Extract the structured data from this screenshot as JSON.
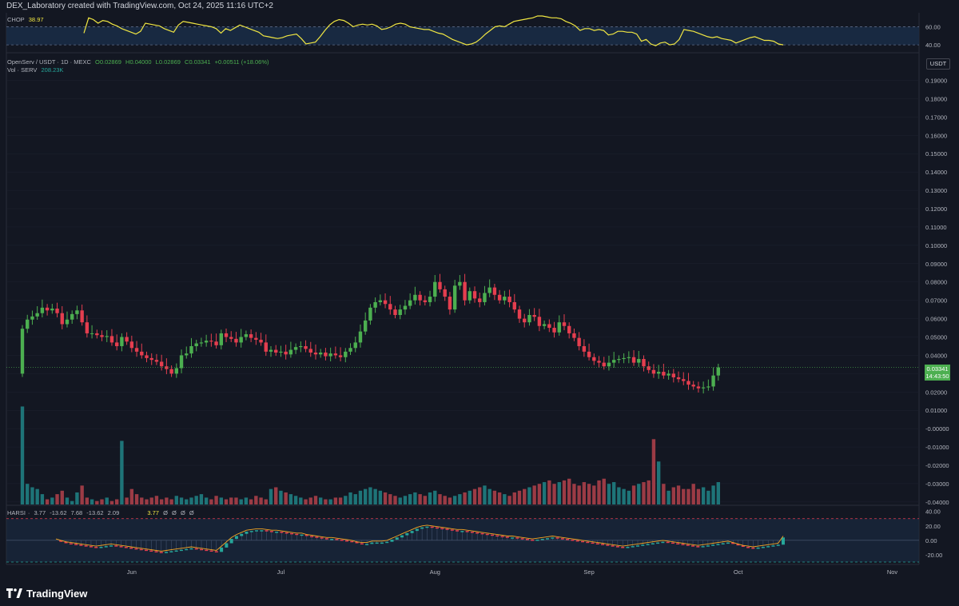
{
  "header": {
    "attribution": "DEX_Laboratory created with TradingView.com, Oct 24, 2025 11:16 UTC+2"
  },
  "footer": {
    "logo_text": "TradingView"
  },
  "colors": {
    "background": "#131722",
    "up": "#4caf50",
    "down": "#e53e4f",
    "vol_up": "#1e7478",
    "vol_down": "#9b3b45",
    "chop_line": "#f0e642",
    "axis_text": "#b2b5be",
    "grid": "#1e2230"
  },
  "chop": {
    "label": "CHOP",
    "value": "38.97",
    "y_range": [
      33,
      72
    ],
    "ticks": [
      "60.00",
      "40.00"
    ],
    "tick_values": [
      60,
      40
    ],
    "values": [
      53,
      70,
      68,
      64,
      67,
      66,
      63,
      61,
      58,
      56,
      54,
      52,
      55,
      64,
      63,
      62,
      61,
      58,
      56,
      54,
      62,
      66,
      65,
      64,
      63,
      62,
      61,
      60,
      58,
      53,
      58,
      56,
      59,
      62,
      60,
      58,
      56,
      54,
      50,
      49,
      48,
      47,
      48,
      50,
      51,
      52,
      47,
      41,
      42,
      43,
      49,
      56,
      62,
      66,
      68,
      67,
      64,
      60,
      62,
      63,
      62,
      63,
      61,
      57,
      58,
      60,
      63,
      64,
      63,
      60,
      59,
      58,
      57,
      57,
      55,
      53,
      52,
      49,
      46,
      44,
      42,
      40,
      41,
      43,
      47,
      52,
      56,
      60,
      61,
      60,
      63,
      66,
      67,
      68,
      69,
      70,
      72,
      72,
      71,
      70,
      70,
      69,
      66,
      64,
      61,
      56,
      58,
      58,
      56,
      57,
      56,
      51,
      52,
      55,
      55,
      54,
      54,
      52,
      44,
      46,
      41,
      39,
      42,
      43,
      40,
      41,
      46,
      57,
      56,
      55,
      53,
      51,
      49,
      48,
      49,
      47,
      46,
      45,
      42,
      44,
      46,
      48,
      49,
      47,
      45,
      45,
      44,
      41,
      40
    ]
  },
  "main": {
    "legend": {
      "symbol": "OpenServ / USDT · 1D · MEXC",
      "open": "O0.02869",
      "high": "H0.04000",
      "low": "L0.02869",
      "close": "C0.03341",
      "change": "+0.00511 (+18.06%)",
      "vol_label": "Vol · SERV",
      "vol_value": "208.23K"
    },
    "currency": "USDT",
    "last_price": "0.03341",
    "countdown": "14:43:50",
    "price_axis": [
      "0.19000",
      "0.18000",
      "0.17000",
      "0.16000",
      "0.15000",
      "0.14000",
      "0.13000",
      "0.12000",
      "0.11000",
      "0.10000",
      "0.09000",
      "0.08000",
      "0.07000",
      "0.06000",
      "0.05000",
      "0.04000",
      "0.03000",
      "0.02000",
      "0.01000",
      "-0.00000",
      "-0.01000",
      "-0.02000",
      "-0.03000",
      "-0.04000"
    ],
    "price_axis_values": [
      0.19,
      0.18,
      0.17,
      0.16,
      0.15,
      0.14,
      0.13,
      0.12,
      0.11,
      0.1,
      0.09,
      0.08,
      0.07,
      0.06,
      0.05,
      0.04,
      0.03,
      0.02,
      0.01,
      0,
      -0.01,
      -0.02,
      -0.03,
      -0.04
    ],
    "date_axis": [
      {
        "label": "Jun",
        "index": 22
      },
      {
        "label": "Jul",
        "index": 52
      },
      {
        "label": "Aug",
        "index": 83
      },
      {
        "label": "Sep",
        "index": 114
      },
      {
        "label": "Oct",
        "index": 144
      },
      {
        "label": "Nov",
        "index": 175
      }
    ],
    "closes": [
      0.0545,
      0.0595,
      0.0612,
      0.063,
      0.066,
      0.0645,
      0.0655,
      0.063,
      0.057,
      0.0595,
      0.0625,
      0.0645,
      0.058,
      0.052,
      0.052,
      0.051,
      0.05,
      0.0505,
      0.047,
      0.045,
      0.05,
      0.0475,
      0.044,
      0.042,
      0.04,
      0.0385,
      0.0375,
      0.0365,
      0.034,
      0.0325,
      0.03,
      0.033,
      0.04,
      0.041,
      0.045,
      0.0465,
      0.047,
      0.048,
      0.0475,
      0.0455,
      0.052,
      0.05,
      0.049,
      0.047,
      0.05,
      0.0515,
      0.0495,
      0.0485,
      0.047,
      0.042,
      0.043,
      0.0415,
      0.042,
      0.0405,
      0.043,
      0.0445,
      0.045,
      0.0435,
      0.0415,
      0.0405,
      0.0415,
      0.0395,
      0.041,
      0.04,
      0.039,
      0.042,
      0.044,
      0.047,
      0.053,
      0.059,
      0.066,
      0.069,
      0.07,
      0.068,
      0.065,
      0.062,
      0.065,
      0.067,
      0.07,
      0.073,
      0.07,
      0.069,
      0.072,
      0.08,
      0.076,
      0.072,
      0.065,
      0.078,
      0.08,
      0.07,
      0.075,
      0.071,
      0.069,
      0.074,
      0.077,
      0.073,
      0.07,
      0.072,
      0.069,
      0.065,
      0.06,
      0.058,
      0.062,
      0.061,
      0.056,
      0.057,
      0.055,
      0.0525,
      0.058,
      0.056,
      0.052,
      0.0495,
      0.045,
      0.042,
      0.039,
      0.037,
      0.036,
      0.034,
      0.036,
      0.0375,
      0.038,
      0.0385,
      0.039,
      0.036,
      0.038,
      0.034,
      0.032,
      0.03,
      0.031,
      0.029,
      0.03,
      0.028,
      0.027,
      0.026,
      0.024,
      0.023,
      0.022,
      0.0225,
      0.023,
      0.029,
      0.0334
    ],
    "volume": [
      57,
      12,
      10,
      9,
      6,
      3,
      4,
      6,
      8,
      4,
      2,
      7,
      11,
      4,
      3,
      2,
      3,
      4,
      2,
      3,
      37,
      4,
      9,
      6,
      4,
      3,
      4,
      5,
      3,
      4,
      3,
      5,
      4,
      3,
      4,
      5,
      6,
      4,
      3,
      5,
      4,
      3,
      4,
      4,
      3,
      4,
      3,
      5,
      4,
      3,
      9,
      10,
      8,
      7,
      6,
      5,
      4,
      3,
      4,
      5,
      4,
      3,
      3,
      4,
      4,
      5,
      7,
      6,
      8,
      9,
      10,
      9,
      8,
      7,
      6,
      5,
      4,
      5,
      6,
      7,
      6,
      5,
      7,
      8,
      6,
      5,
      4,
      5,
      6,
      7,
      8,
      9,
      10,
      11,
      9,
      8,
      7,
      6,
      5,
      7,
      8,
      9,
      10,
      11,
      12,
      13,
      14,
      12,
      13,
      14,
      15,
      12,
      11,
      13,
      12,
      11,
      14,
      15,
      12,
      13,
      10,
      9,
      8,
      11,
      12,
      13,
      14,
      38,
      25,
      12,
      8,
      10,
      11,
      9,
      9,
      12,
      9,
      10,
      8,
      11,
      13,
      12,
      14,
      10,
      11,
      12,
      13,
      14
    ]
  },
  "harsi": {
    "legend_name": "HARSI",
    "legend_values": [
      "3.77",
      "-13.62",
      "7.68",
      "-13.62",
      "2.09"
    ],
    "legend_value2": "3.77",
    "legend_dots": [
      "Ø",
      "Ø",
      "Ø",
      "Ø"
    ],
    "y_range": [
      -30,
      43
    ],
    "ticks": [
      "40.00",
      "20.00",
      "0.00",
      "-20.00"
    ],
    "tick_values": [
      40,
      20,
      0,
      -20
    ],
    "values": [
      0,
      -2,
      -4,
      -5,
      -6,
      -7,
      -8,
      -9,
      -10,
      -9,
      -8,
      -7,
      -8,
      -9,
      -10,
      -11,
      -12,
      -13,
      -14,
      -15,
      -16,
      -17,
      -16,
      -15,
      -14,
      -13,
      -12,
      -11,
      -12,
      -13,
      -14,
      -15,
      -16,
      -10,
      -4,
      2,
      6,
      9,
      12,
      13,
      14,
      14,
      13,
      12,
      12,
      11,
      10,
      9,
      8,
      8,
      6,
      5,
      4,
      3,
      2,
      2,
      1,
      0,
      -1,
      -2,
      -4,
      -5,
      -5,
      -3,
      -3,
      -3,
      -2,
      1,
      4,
      7,
      10,
      13,
      16,
      18,
      19,
      18,
      17,
      16,
      15,
      14,
      13,
      13,
      12,
      11,
      10,
      9,
      8,
      7,
      6,
      5,
      4,
      4,
      3,
      2,
      1,
      0,
      1,
      2,
      3,
      4,
      3,
      2,
      1,
      0,
      -1,
      -2,
      -3,
      -4,
      -5,
      -6,
      -7,
      -8,
      -9,
      -10,
      -9,
      -8,
      -7,
      -6,
      -5,
      -4,
      -3,
      -2,
      -3,
      -4,
      -5,
      -6,
      -7,
      -8,
      -9,
      -8,
      -7,
      -6,
      -5,
      -4,
      -3,
      -5,
      -7,
      -9,
      -10,
      -11,
      -10,
      -9,
      -8,
      -7,
      -6,
      4
    ]
  }
}
